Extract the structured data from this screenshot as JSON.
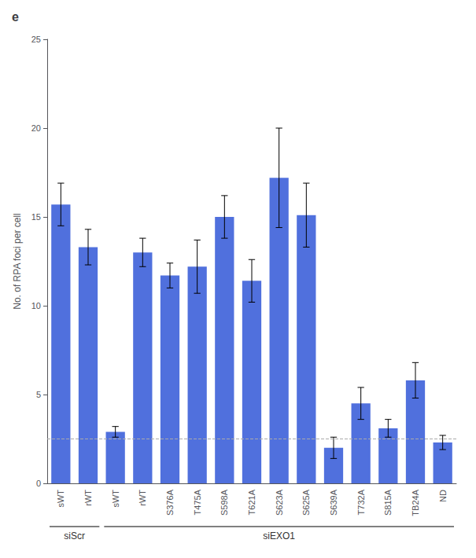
{
  "chart_data": {
    "type": "bar",
    "title": "e",
    "y_label": "No. of RPA foci per cell",
    "categories": [
      "sWT",
      "rWT",
      "sWT",
      "rWT",
      "S376A",
      "T475A",
      "S598A",
      "T621A",
      "S623A",
      "S625A",
      "S639A",
      "T732A",
      "S815A",
      "TB24A",
      "ND"
    ],
    "values": [
      15.7,
      13.3,
      2.9,
      13.0,
      11.7,
      12.2,
      15.0,
      11.4,
      17.2,
      15.1,
      2.0,
      4.5,
      3.1,
      5.8,
      2.3
    ],
    "errors": [
      1.2,
      1.0,
      0.3,
      0.8,
      0.7,
      1.5,
      1.2,
      1.2,
      2.8,
      1.8,
      0.6,
      0.9,
      0.5,
      1.0,
      0.4
    ],
    "hline": 2.5,
    "groups": [
      {
        "label": "siScr",
        "count": 2
      },
      {
        "label": "siEXO1",
        "count": 13
      }
    ],
    "ylim": [
      0,
      25
    ],
    "yticks": [
      0,
      5,
      10,
      15,
      20,
      25
    ],
    "grid": false
  }
}
